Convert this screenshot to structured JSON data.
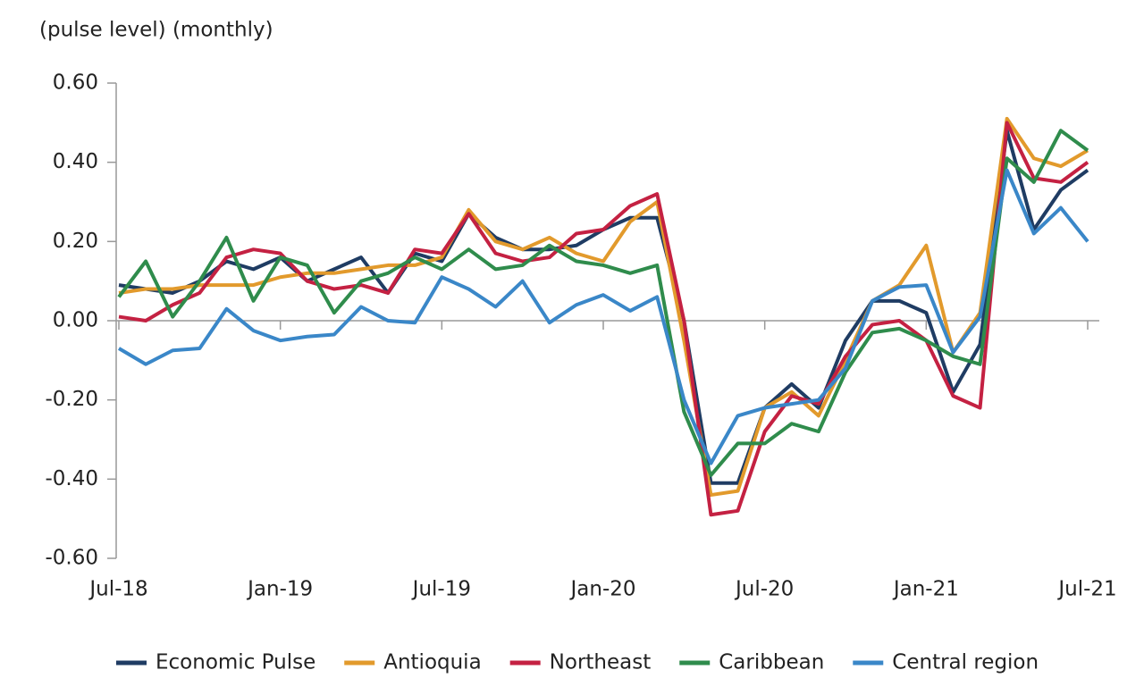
{
  "chart_data": {
    "type": "line",
    "ylabel": "(pulse level) (monthly)",
    "categories": [
      "Jul-18",
      null,
      null,
      null,
      null,
      null,
      "Jan-19",
      null,
      null,
      null,
      null,
      null,
      "Jul-19",
      null,
      null,
      null,
      null,
      null,
      "Jan-20",
      null,
      null,
      null,
      null,
      null,
      "Jul-20",
      null,
      null,
      null,
      null,
      null,
      "Jan-21",
      null,
      null,
      null,
      null,
      null,
      "Jul-21"
    ],
    "ylim": [
      -0.6,
      0.6
    ],
    "yticks": [
      {
        "value": -0.6,
        "label": "-0.60"
      },
      {
        "value": -0.4,
        "label": "-0.40"
      },
      {
        "value": -0.2,
        "label": "-0.20"
      },
      {
        "value": 0,
        "label": "0.00"
      },
      {
        "value": 0.2,
        "label": "0.20"
      },
      {
        "value": 0.4,
        "label": "0.40"
      },
      {
        "value": 0.6,
        "label": "0.60"
      }
    ],
    "grid": false,
    "legend": "bottom",
    "series": [
      {
        "name": "Economic Pulse",
        "color": "#1f3c63",
        "values": [
          0.09,
          0.08,
          0.07,
          0.1,
          0.15,
          0.13,
          0.16,
          0.1,
          0.13,
          0.16,
          0.07,
          0.17,
          0.15,
          0.27,
          0.21,
          0.18,
          0.18,
          0.19,
          0.23,
          0.26,
          0.26,
          0.0,
          -0.41,
          -0.41,
          -0.22,
          -0.16,
          -0.22,
          -0.05,
          0.05,
          0.05,
          0.02,
          -0.18,
          -0.06,
          0.48,
          0.23,
          0.33,
          0.38
        ]
      },
      {
        "name": "Antioquia",
        "color": "#e29a2c",
        "values": [
          0.07,
          0.08,
          0.08,
          0.09,
          0.09,
          0.09,
          0.11,
          0.12,
          0.12,
          0.13,
          0.14,
          0.14,
          0.16,
          0.28,
          0.2,
          0.18,
          0.21,
          0.17,
          0.15,
          0.25,
          0.3,
          -0.05,
          -0.44,
          -0.43,
          -0.22,
          -0.18,
          -0.24,
          -0.1,
          0.05,
          0.09,
          0.19,
          -0.08,
          0.02,
          0.51,
          0.41,
          0.39,
          0.43
        ]
      },
      {
        "name": "Northeast",
        "color": "#c42142",
        "values": [
          0.01,
          0.0,
          0.04,
          0.07,
          0.16,
          0.18,
          0.17,
          0.1,
          0.08,
          0.09,
          0.07,
          0.18,
          0.17,
          0.27,
          0.17,
          0.15,
          0.16,
          0.22,
          0.23,
          0.29,
          0.32,
          0.0,
          -0.49,
          -0.48,
          -0.28,
          -0.19,
          -0.21,
          -0.09,
          -0.01,
          0.0,
          -0.05,
          -0.19,
          -0.22,
          0.5,
          0.36,
          0.35,
          0.4
        ]
      },
      {
        "name": "Caribbean",
        "color": "#2f8c4c",
        "values": [
          0.06,
          0.15,
          0.01,
          0.1,
          0.21,
          0.05,
          0.16,
          0.14,
          0.02,
          0.1,
          0.12,
          0.16,
          0.13,
          0.18,
          0.13,
          0.14,
          0.19,
          0.15,
          0.14,
          0.12,
          0.14,
          -0.23,
          -0.39,
          -0.31,
          -0.31,
          -0.26,
          -0.28,
          -0.13,
          -0.03,
          -0.02,
          -0.05,
          -0.09,
          -0.11,
          0.41,
          0.35,
          0.48,
          0.43
        ]
      },
      {
        "name": "Central region",
        "color": "#3a87c8",
        "values": [
          -0.07,
          -0.11,
          -0.075,
          -0.07,
          0.03,
          -0.025,
          -0.05,
          -0.04,
          -0.035,
          0.035,
          0.0,
          -0.005,
          0.11,
          0.08,
          0.035,
          0.1,
          -0.005,
          0.04,
          0.065,
          0.025,
          0.06,
          -0.2,
          -0.36,
          -0.24,
          -0.22,
          -0.21,
          -0.2,
          -0.12,
          0.05,
          0.085,
          0.09,
          -0.08,
          0.01,
          0.38,
          0.22,
          0.285,
          0.2
        ]
      }
    ]
  }
}
